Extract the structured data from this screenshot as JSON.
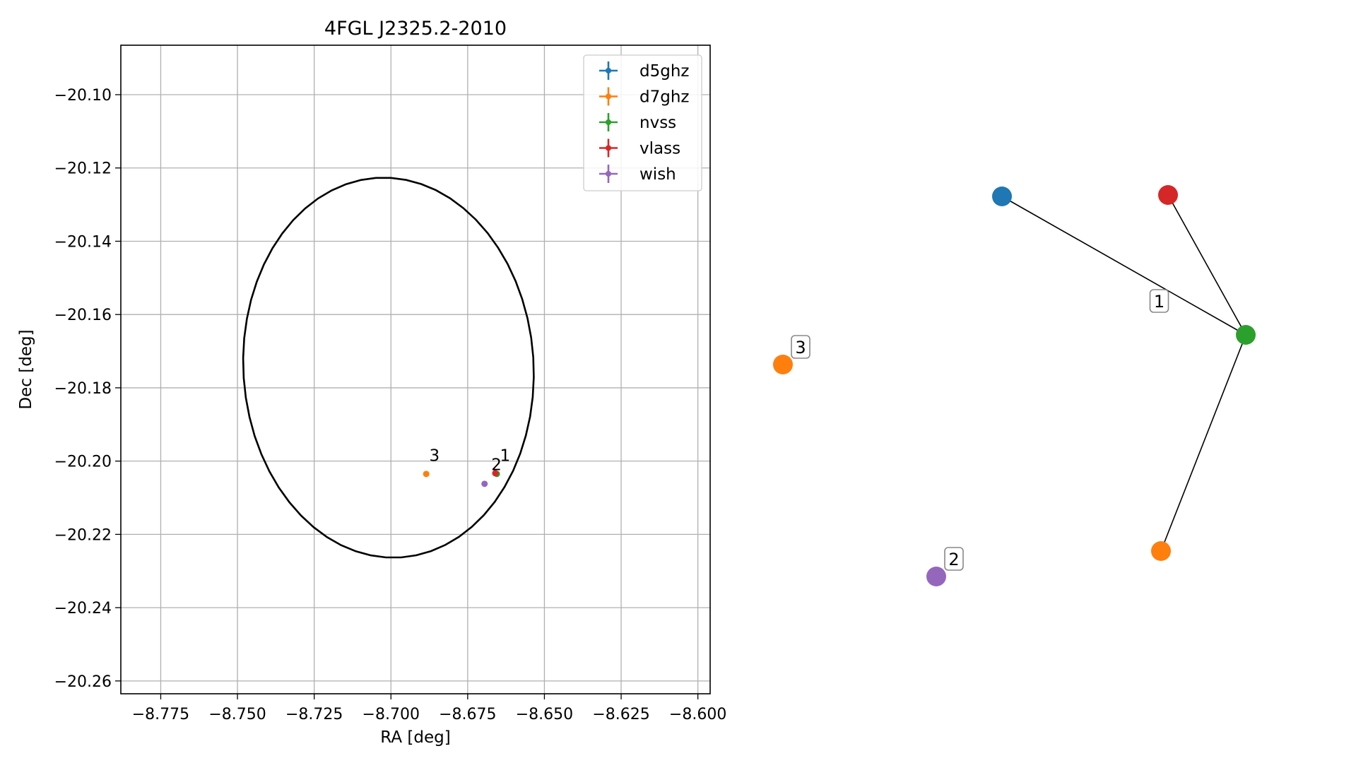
{
  "chart_data": [
    {
      "type": "scatter",
      "title": "4FGL J2325.2-2010",
      "xlabel": "RA [deg]",
      "ylabel": "Dec [deg]",
      "xlim": [
        -8.788,
        -8.596
      ],
      "ylim": [
        -20.2635,
        -20.0865
      ],
      "xticks": [
        -8.775,
        -8.75,
        -8.725,
        -8.7,
        -8.675,
        -8.65,
        -8.625,
        -8.6
      ],
      "xtick_labels": [
        "−8.775",
        "−8.750",
        "−8.725",
        "−8.700",
        "−8.675",
        "−8.650",
        "−8.625",
        "−8.600"
      ],
      "yticks": [
        -20.1,
        -20.12,
        -20.14,
        -20.16,
        -20.18,
        -20.2,
        -20.22,
        -20.24,
        -20.26
      ],
      "ytick_labels": [
        "−20.10",
        "−20.12",
        "−20.14",
        "−20.16",
        "−20.18",
        "−20.20",
        "−20.22",
        "−20.24",
        "−20.26"
      ],
      "grid": true,
      "legend_position": "top-right",
      "series": [
        {
          "name": "d5ghz",
          "color": "#1f77b4",
          "points": []
        },
        {
          "name": "d7ghz",
          "color": "#ff7f0e",
          "points": [
            [
              -8.6885,
              -20.2035
            ]
          ]
        },
        {
          "name": "nvss",
          "color": "#2ca02c",
          "points": [
            [
              -8.6655,
              -20.2035
            ]
          ]
        },
        {
          "name": "vlass",
          "color": "#d62728",
          "points": [
            [
              -8.666,
              -20.2033
            ]
          ]
        },
        {
          "name": "wish",
          "color": "#9467bd",
          "points": [
            [
              -8.6695,
              -20.2062
            ]
          ]
        }
      ],
      "annotations": [
        {
          "text": "3",
          "x": -8.6875,
          "y": -20.2
        },
        {
          "text": "2",
          "x": -8.6673,
          "y": -20.2025
        },
        {
          "text": "1",
          "x": -8.6645,
          "y": -20.2
        }
      ],
      "ellipse": {
        "center": [
          -8.7008,
          -20.1745
        ],
        "semi_x_deg": 0.0472,
        "semi_y_deg": 0.052,
        "angle_deg": 10,
        "color": "#000000"
      }
    },
    {
      "type": "network",
      "nodes": [
        {
          "id": "blue",
          "color": "#1f77b4"
        },
        {
          "id": "red",
          "color": "#d62728"
        },
        {
          "id": "green",
          "color": "#2ca02c"
        },
        {
          "id": "orange-left",
          "color": "#ff7f0e",
          "label": "3"
        },
        {
          "id": "orange-bottom",
          "color": "#ff7f0e"
        },
        {
          "id": "purple",
          "color": "#9467bd",
          "label": "2"
        }
      ],
      "edges": [
        {
          "source": "blue",
          "target": "green",
          "label": "1"
        },
        {
          "source": "red",
          "target": "green"
        },
        {
          "source": "green",
          "target": "orange-bottom"
        }
      ]
    }
  ]
}
